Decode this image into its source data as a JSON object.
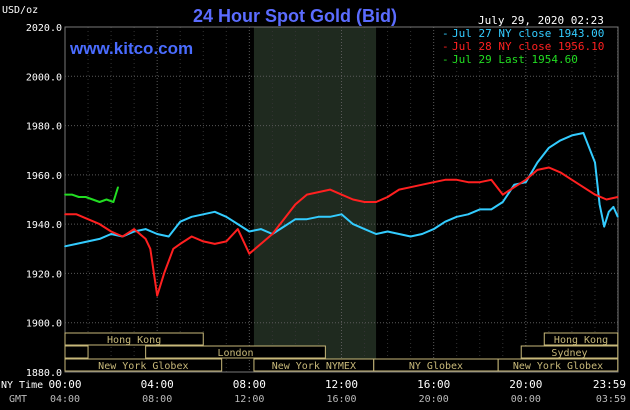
{
  "title": "24 Hour Spot Gold (Bid)",
  "y_unit_label": "USD/oz",
  "brand_url": "www.kitco.com",
  "timestamp": "July 29, 2020 02:23",
  "colors": {
    "background": "#000000",
    "plot_background": "#000000",
    "grid": "#5a5a5a",
    "shade": "#2b3a2b",
    "title": "#5b6cff",
    "brand": "#4a6cff",
    "text": "#ffffff",
    "dim_text": "#bbbbbb",
    "session_box_fill": "#000000",
    "session_box_border": "#c8b97a",
    "session_text": "#c8b97a"
  },
  "legend": [
    {
      "text": "Jul 27 NY close 1943.00",
      "color": "#33ccff"
    },
    {
      "text": "Jul 28 NY close 1956.10",
      "color": "#ff2020"
    },
    {
      "text": "Jul 29 Last 1954.60",
      "color": "#22dd22"
    }
  ],
  "axis": {
    "y_ticks": [
      "2020.0",
      "2000.0",
      "1980.0",
      "1960.0",
      "1940.0",
      "1920.0",
      "1900.0",
      "1880.0"
    ],
    "x_row1_label": "NY Time",
    "x_row2_label": "GMT",
    "x_ticks_ny": [
      "00:00",
      "04:00",
      "08:00",
      "12:00",
      "16:00",
      "20:00",
      "23:59"
    ],
    "x_ticks_gmt": [
      "04:00",
      "08:00",
      "12:00",
      "16:00",
      "20:00",
      "00:00",
      "03:59"
    ]
  },
  "sessions": {
    "hong_kong_1": "Hong Kong",
    "london": "London",
    "ny_globex_1": "New York Globex",
    "ny_nymex": "New York NYMEX",
    "ny_globex_2": "NY Globex",
    "hong_kong_2": "Hong Kong",
    "sydney": "Sydney",
    "ny_globex_3": "New York Globex"
  },
  "chart_data": {
    "type": "line",
    "title": "24 Hour Spot Gold (Bid)",
    "ylabel": "USD/oz",
    "ylim": [
      1880,
      2020
    ],
    "xlim_hours": [
      0,
      24
    ],
    "grid": true,
    "legend_position": "top-right",
    "series": [
      {
        "name": "Jul 27 NY close 1943.00",
        "color": "#33ccff",
        "x": [
          0,
          0.5,
          1,
          1.5,
          2,
          2.5,
          3,
          3.5,
          4,
          4.5,
          5,
          5.5,
          6,
          6.5,
          7,
          7.5,
          8,
          8.5,
          9,
          9.5,
          10,
          10.5,
          11,
          11.5,
          12,
          12.5,
          13,
          13.5,
          14,
          14.5,
          15,
          15.5,
          16,
          16.5,
          17,
          17.5,
          18,
          18.5,
          19,
          19.5,
          20,
          20.5,
          21,
          21.5,
          22,
          22.5,
          23,
          23.2,
          23.4,
          23.6,
          23.8,
          23.99
        ],
        "values": [
          1931,
          1932,
          1933,
          1934,
          1936,
          1935,
          1937,
          1938,
          1936,
          1935,
          1941,
          1943,
          1944,
          1945,
          1943,
          1940,
          1937,
          1938,
          1936,
          1939,
          1942,
          1942,
          1943,
          1943,
          1944,
          1940,
          1938,
          1936,
          1937,
          1936,
          1935,
          1936,
          1938,
          1941,
          1943,
          1944,
          1946,
          1946,
          1949,
          1956,
          1957,
          1965,
          1971,
          1974,
          1976,
          1977,
          1965,
          1948,
          1939,
          1945,
          1947,
          1943
        ]
      },
      {
        "name": "Jul 28 NY close 1956.10",
        "color": "#ff2020",
        "x": [
          0,
          0.5,
          1,
          1.5,
          2,
          2.5,
          3,
          3.5,
          3.7,
          4,
          4.3,
          4.7,
          5,
          5.5,
          6,
          6.5,
          7,
          7.5,
          8,
          8.5,
          9,
          9.5,
          10,
          10.5,
          11,
          11.5,
          12,
          12.5,
          13,
          13.5,
          14,
          14.5,
          15,
          15.5,
          16,
          16.5,
          17,
          17.5,
          18,
          18.5,
          19,
          19.5,
          20,
          20.5,
          21,
          21.5,
          22,
          22.5,
          23,
          23.5,
          23.99
        ],
        "values": [
          1944,
          1944,
          1942,
          1940,
          1937,
          1935,
          1938,
          1934,
          1930,
          1911,
          1920,
          1930,
          1932,
          1935,
          1933,
          1932,
          1933,
          1938,
          1928,
          1932,
          1936,
          1942,
          1948,
          1952,
          1953,
          1954,
          1952,
          1950,
          1949,
          1949,
          1951,
          1954,
          1955,
          1956,
          1957,
          1958,
          1958,
          1957,
          1957,
          1958,
          1952,
          1955,
          1958,
          1962,
          1963,
          1961,
          1958,
          1955,
          1952,
          1950,
          1951
        ]
      },
      {
        "name": "Jul 29 Last 1954.60",
        "color": "#22dd22",
        "x": [
          0,
          0.3,
          0.6,
          0.9,
          1.2,
          1.5,
          1.8,
          2.1,
          2.3
        ],
        "values": [
          1952,
          1952,
          1951,
          1951,
          1950,
          1949,
          1950,
          1949,
          1955
        ]
      }
    ]
  }
}
